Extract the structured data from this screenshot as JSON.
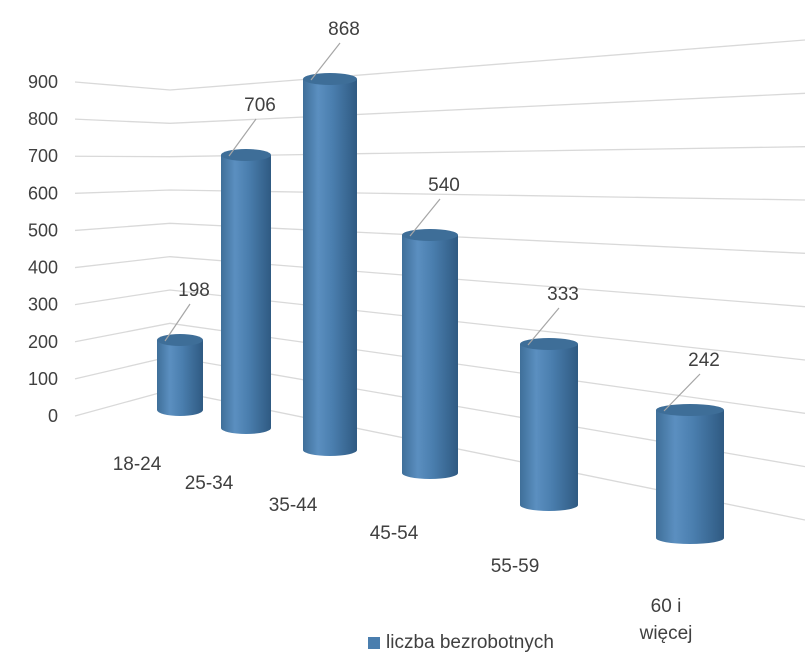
{
  "chart_data": {
    "type": "bar",
    "style": "3d-cylinder",
    "categories": [
      "18-24",
      "25-34",
      "35-44",
      "45-54",
      "55-59",
      "60 i\nwięcej"
    ],
    "series": [
      {
        "name": "liczba bezrobotnych",
        "values": [
          198,
          706,
          868,
          540,
          333,
          242
        ],
        "color": "#4A7EAE"
      }
    ],
    "data_labels": [
      "198",
      "706",
      "868",
      "540",
      "333",
      "242"
    ],
    "y_ticks": [
      "0",
      "100",
      "200",
      "300",
      "400",
      "500",
      "600",
      "700",
      "800",
      "900"
    ],
    "ylim": [
      0,
      900
    ],
    "grid": true,
    "legend": "bottom"
  }
}
